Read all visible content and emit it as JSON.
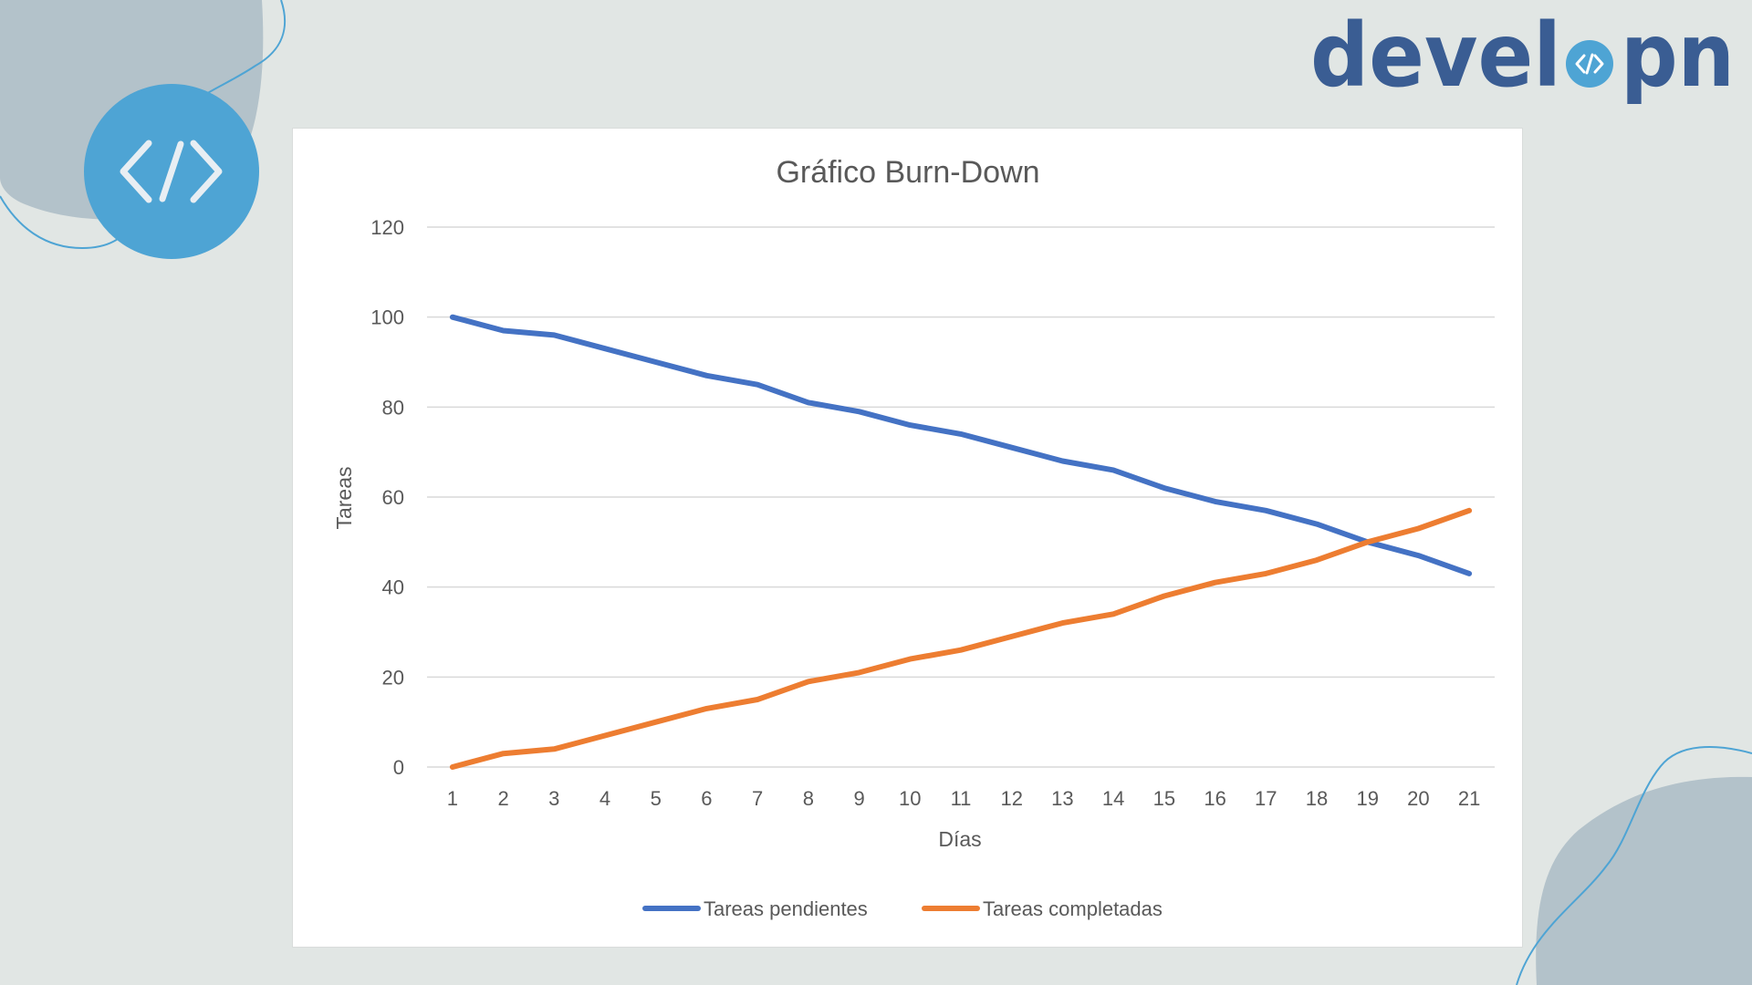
{
  "brand": {
    "logo_text": "develpn",
    "badge_icon": "code-brackets-icon",
    "accent_color": "#4ea4d4",
    "text_color": "#3a5d93"
  },
  "chart_data": {
    "type": "line",
    "title": "Gráfico Burn-Down",
    "xlabel": "Días",
    "ylabel": "Tareas",
    "x": [
      1,
      2,
      3,
      4,
      5,
      6,
      7,
      8,
      9,
      10,
      11,
      12,
      13,
      14,
      15,
      16,
      17,
      18,
      19,
      20,
      21
    ],
    "y_ticks": [
      0,
      20,
      40,
      60,
      80,
      100,
      120
    ],
    "ylim": [
      0,
      120
    ],
    "grid": true,
    "legend_position": "bottom",
    "series": [
      {
        "name": "Tareas pendientes",
        "color": "#4472c4",
        "values": [
          100,
          97,
          96,
          93,
          90,
          87,
          85,
          81,
          79,
          76,
          74,
          71,
          68,
          66,
          62,
          59,
          57,
          54,
          50,
          47,
          43
        ]
      },
      {
        "name": "Tareas completadas",
        "color": "#ed7d31",
        "values": [
          0,
          3,
          4,
          7,
          10,
          13,
          15,
          19,
          21,
          24,
          26,
          29,
          32,
          34,
          38,
          41,
          43,
          46,
          50,
          53,
          57
        ]
      }
    ]
  }
}
